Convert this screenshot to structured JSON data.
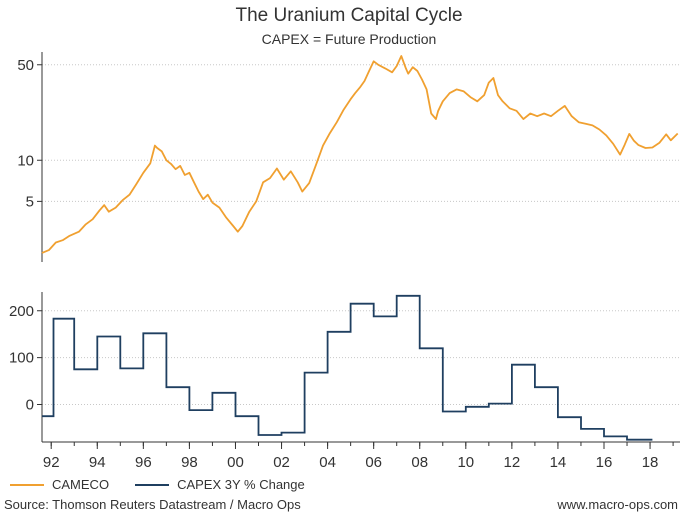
{
  "colors": {
    "cameco": "#F0A030",
    "capex": "#1F3F60",
    "grid": "#C8C8C8",
    "axis": "#333333",
    "text": "#333333"
  },
  "chart_data": [
    {
      "type": "line",
      "title": "The Uranium Capital Cycle",
      "subtitle": "CAPEX = Future Production",
      "yscale": "log",
      "ylim": [
        1.8,
        62
      ],
      "yticks": [
        5,
        10,
        50
      ],
      "grid": true,
      "series": [
        {
          "name": "CAMECO",
          "x": [
            1991.6,
            1991.9,
            1992.2,
            1992.5,
            1992.8,
            1993.2,
            1993.5,
            1993.8,
            1994.1,
            1994.3,
            1994.5,
            1994.8,
            1995.1,
            1995.4,
            1995.7,
            1996.0,
            1996.3,
            1996.5,
            1996.6,
            1996.8,
            1997.0,
            1997.2,
            1997.4,
            1997.6,
            1997.8,
            1998.0,
            1998.2,
            1998.4,
            1998.6,
            1998.8,
            1999.0,
            1999.3,
            1999.6,
            1999.9,
            2000.1,
            2000.3,
            2000.6,
            2000.9,
            2001.2,
            2001.5,
            2001.8,
            2002.1,
            2002.4,
            2002.7,
            2002.9,
            2003.2,
            2003.5,
            2003.8,
            2004.1,
            2004.4,
            2004.7,
            2005.0,
            2005.2,
            2005.4,
            2005.6,
            2005.8,
            2006.0,
            2006.2,
            2006.5,
            2006.8,
            2007.0,
            2007.2,
            2007.4,
            2007.5,
            2007.7,
            2007.9,
            2008.1,
            2008.3,
            2008.5,
            2008.7,
            2008.8,
            2009.0,
            2009.3,
            2009.6,
            2009.9,
            2010.2,
            2010.5,
            2010.8,
            2011.0,
            2011.2,
            2011.4,
            2011.6,
            2011.9,
            2012.2,
            2012.5,
            2012.8,
            2013.1,
            2013.4,
            2013.7,
            2014.0,
            2014.3,
            2014.6,
            2014.9,
            2015.2,
            2015.5,
            2015.8,
            2016.1,
            2016.4,
            2016.7,
            2016.9,
            2017.1,
            2017.3,
            2017.5,
            2017.8,
            2018.1,
            2018.4,
            2018.7,
            2018.9,
            2019.2
          ],
          "values": [
            2.1,
            2.2,
            2.5,
            2.6,
            2.8,
            3.0,
            3.4,
            3.7,
            4.3,
            4.7,
            4.2,
            4.5,
            5.1,
            5.6,
            6.7,
            8.1,
            9.5,
            12.8,
            12.3,
            11.6,
            10.0,
            9.4,
            8.6,
            9.1,
            7.8,
            8.1,
            6.9,
            5.9,
            5.2,
            5.6,
            4.9,
            4.5,
            3.8,
            3.3,
            3.0,
            3.3,
            4.2,
            5.0,
            6.9,
            7.4,
            8.7,
            7.2,
            8.3,
            6.9,
            5.9,
            6.8,
            9.3,
            12.8,
            15.8,
            19.0,
            23.5,
            28.0,
            31.0,
            34.0,
            38.0,
            45.0,
            53.0,
            50.0,
            47.0,
            44.0,
            49.0,
            58.0,
            47.0,
            43.0,
            48.0,
            45.0,
            39.0,
            33.0,
            22.0,
            20.0,
            23.0,
            27.0,
            31.0,
            33.0,
            32.0,
            29.0,
            27.0,
            30.0,
            37.0,
            40.0,
            30.0,
            27.0,
            24.0,
            23.0,
            20.0,
            22.0,
            21.0,
            22.0,
            21.0,
            23.0,
            25.0,
            21.0,
            19.0,
            18.5,
            18.0,
            16.8,
            15.2,
            13.2,
            11.0,
            13.0,
            15.6,
            13.9,
            12.9,
            12.3,
            12.4,
            13.4,
            15.5,
            14.0,
            15.7
          ]
        }
      ]
    },
    {
      "type": "line",
      "step": true,
      "ylim": [
        -80,
        240
      ],
      "yticks": [
        0,
        100,
        200
      ],
      "grid": true,
      "xticks": [
        "92",
        "94",
        "96",
        "98",
        "00",
        "02",
        "04",
        "06",
        "08",
        "10",
        "12",
        "14",
        "16",
        "18"
      ],
      "xtick_years": [
        1992,
        1994,
        1996,
        1998,
        2000,
        2002,
        2004,
        2006,
        2008,
        2010,
        2012,
        2014,
        2016,
        2018
      ],
      "xlim": [
        1991.6,
        2019.3
      ],
      "series": [
        {
          "name": "CAPEX 3Y % Change",
          "x": [
            1991.6,
            1992.1,
            1993.0,
            1994.0,
            1995.0,
            1996.0,
            1997.0,
            1998.0,
            1999.0,
            2000.0,
            2001.0,
            2002.0,
            2003.0,
            2004.0,
            2005.0,
            2006.0,
            2007.0,
            2008.0,
            2009.0,
            2010.0,
            2011.0,
            2012.0,
            2013.0,
            2014.0,
            2015.0,
            2016.0,
            2017.0,
            2018.0
          ],
          "values": [
            -25,
            183,
            75,
            145,
            77,
            152,
            37,
            -12,
            25,
            -25,
            -65,
            -60,
            68,
            155,
            215,
            188,
            232,
            120,
            -15,
            -5,
            2,
            85,
            37,
            -27,
            -52,
            -68,
            -75,
            -75
          ],
          "x_end": 2018.1
        }
      ]
    }
  ],
  "text": {
    "title": "The Uranium Capital Cycle",
    "subtitle": "CAPEX = Future Production",
    "legend_cameco": "CAMECO",
    "legend_capex": "CAPEX 3Y % Change",
    "source": "Source: Thomson Reuters Datastream / Macro Ops",
    "website": "www.macro-ops.com"
  }
}
